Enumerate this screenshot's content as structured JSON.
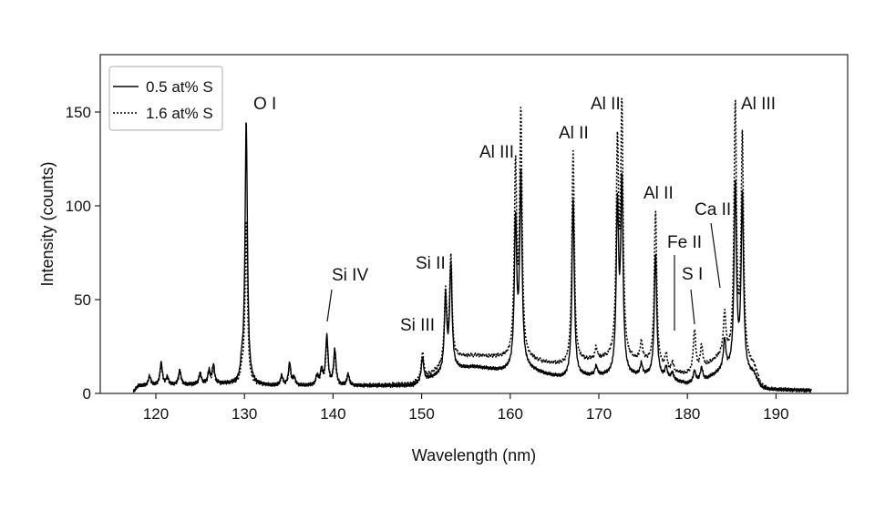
{
  "chart_data": {
    "type": "line",
    "title": "",
    "xlabel": "Wavelength (nm)",
    "ylabel": "Intensity (counts)",
    "xlim": [
      110,
      194
    ],
    "ylim": [
      0,
      180
    ],
    "xticks": [
      120,
      130,
      140,
      150,
      160,
      170,
      180,
      190
    ],
    "yticks": [
      0,
      50,
      100,
      150
    ],
    "grid": false,
    "legend_position": "top-left",
    "x_range": [
      117.5,
      194
    ],
    "series": [
      {
        "name": "0.5 at% S",
        "style": "solid",
        "baseline": [
          [
            117.5,
            1
          ],
          [
            118,
            4
          ],
          [
            128,
            5
          ],
          [
            133,
            4
          ],
          [
            142,
            4
          ],
          [
            149,
            4
          ],
          [
            151,
            8
          ],
          [
            154,
            13
          ],
          [
            156,
            14
          ],
          [
            159,
            12
          ],
          [
            162,
            13
          ],
          [
            164,
            10
          ],
          [
            166,
            8
          ],
          [
            168,
            9
          ],
          [
            171,
            9
          ],
          [
            174,
            9
          ],
          [
            176,
            9
          ],
          [
            178,
            7
          ],
          [
            180,
            5
          ],
          [
            182,
            7
          ],
          [
            184,
            12
          ],
          [
            187.5,
            10
          ],
          [
            188.3,
            3
          ],
          [
            189,
            2
          ],
          [
            194,
            1.5
          ]
        ],
        "peaks": [
          [
            119.3,
            5
          ],
          [
            120.6,
            12
          ],
          [
            121.3,
            4
          ],
          [
            122.7,
            8
          ],
          [
            125.0,
            6
          ],
          [
            126.0,
            7
          ],
          [
            126.5,
            10
          ],
          [
            129.7,
            8
          ],
          [
            130.2,
            141
          ],
          [
            134.2,
            5
          ],
          [
            135.1,
            12
          ],
          [
            135.6,
            4
          ],
          [
            138.2,
            5
          ],
          [
            138.7,
            8
          ],
          [
            139.3,
            26
          ],
          [
            140.2,
            19
          ],
          [
            141.7,
            6
          ],
          [
            150.1,
            13
          ],
          [
            152.7,
            40
          ],
          [
            153.3,
            56
          ],
          [
            160.6,
            78
          ],
          [
            161.2,
            102
          ],
          [
            167.1,
            94
          ],
          [
            169.7,
            5
          ],
          [
            172.1,
            88
          ],
          [
            172.6,
            100
          ],
          [
            174.8,
            6
          ],
          [
            176.4,
            66
          ],
          [
            177.6,
            6
          ],
          [
            178.3,
            4
          ],
          [
            180.8,
            6
          ],
          [
            181.6,
            7
          ],
          [
            184.2,
            16
          ],
          [
            185.4,
            100
          ],
          [
            186.2,
            94
          ]
        ]
      },
      {
        "name": "1.6 at% S",
        "style": "dotted",
        "baseline": [
          [
            117.5,
            1
          ],
          [
            118,
            4
          ],
          [
            128,
            5
          ],
          [
            133,
            4
          ],
          [
            142,
            4
          ],
          [
            149,
            5
          ],
          [
            151,
            10
          ],
          [
            154,
            19
          ],
          [
            156,
            20
          ],
          [
            159,
            19
          ],
          [
            162,
            18
          ],
          [
            164,
            16
          ],
          [
            166,
            15
          ],
          [
            168,
            17
          ],
          [
            171,
            18
          ],
          [
            174,
            17
          ],
          [
            176,
            16
          ],
          [
            178,
            11
          ],
          [
            180,
            10
          ],
          [
            182,
            14
          ],
          [
            184,
            20
          ],
          [
            187.5,
            14
          ],
          [
            188.3,
            4
          ],
          [
            189,
            2
          ],
          [
            194,
            1.5
          ]
        ],
        "peaks": [
          [
            119.3,
            5
          ],
          [
            120.6,
            11
          ],
          [
            121.3,
            4
          ],
          [
            122.7,
            7
          ],
          [
            125.0,
            6
          ],
          [
            126.0,
            6
          ],
          [
            126.5,
            8
          ],
          [
            129.7,
            6
          ],
          [
            130.2,
            88
          ],
          [
            134.2,
            5
          ],
          [
            135.1,
            10
          ],
          [
            135.6,
            4
          ],
          [
            138.2,
            5
          ],
          [
            138.7,
            7
          ],
          [
            139.3,
            24
          ],
          [
            140.2,
            17
          ],
          [
            141.7,
            6
          ],
          [
            150.1,
            14
          ],
          [
            152.7,
            38
          ],
          [
            153.3,
            55
          ],
          [
            160.6,
            100
          ],
          [
            161.2,
            128
          ],
          [
            167.1,
            112
          ],
          [
            169.7,
            6
          ],
          [
            172.1,
            110
          ],
          [
            172.6,
            130
          ],
          [
            174.8,
            10
          ],
          [
            176.4,
            82
          ],
          [
            177.6,
            8
          ],
          [
            178.3,
            5
          ],
          [
            180.8,
            22
          ],
          [
            181.6,
            12
          ],
          [
            184.2,
            22
          ],
          [
            185.4,
            135
          ],
          [
            186.2,
            120
          ]
        ]
      }
    ],
    "annotations": [
      {
        "text": "O I",
        "x": 130.2
      },
      {
        "text": "Si IV",
        "x": 139.8
      },
      {
        "text": "Si III",
        "x": 150.1
      },
      {
        "text": "Si II",
        "x": 153.3
      },
      {
        "text": "Al III",
        "x": 160.9
      },
      {
        "text": "Al II",
        "x": 167.1
      },
      {
        "text": "Al II",
        "x": 172.4
      },
      {
        "text": "Al II",
        "x": 176.4
      },
      {
        "text": "Fe II",
        "x": 178.3
      },
      {
        "text": "S I",
        "x": 180.8
      },
      {
        "text": "Ca II",
        "x": 184.2
      },
      {
        "text": "Al III",
        "x": 185.8
      }
    ]
  }
}
